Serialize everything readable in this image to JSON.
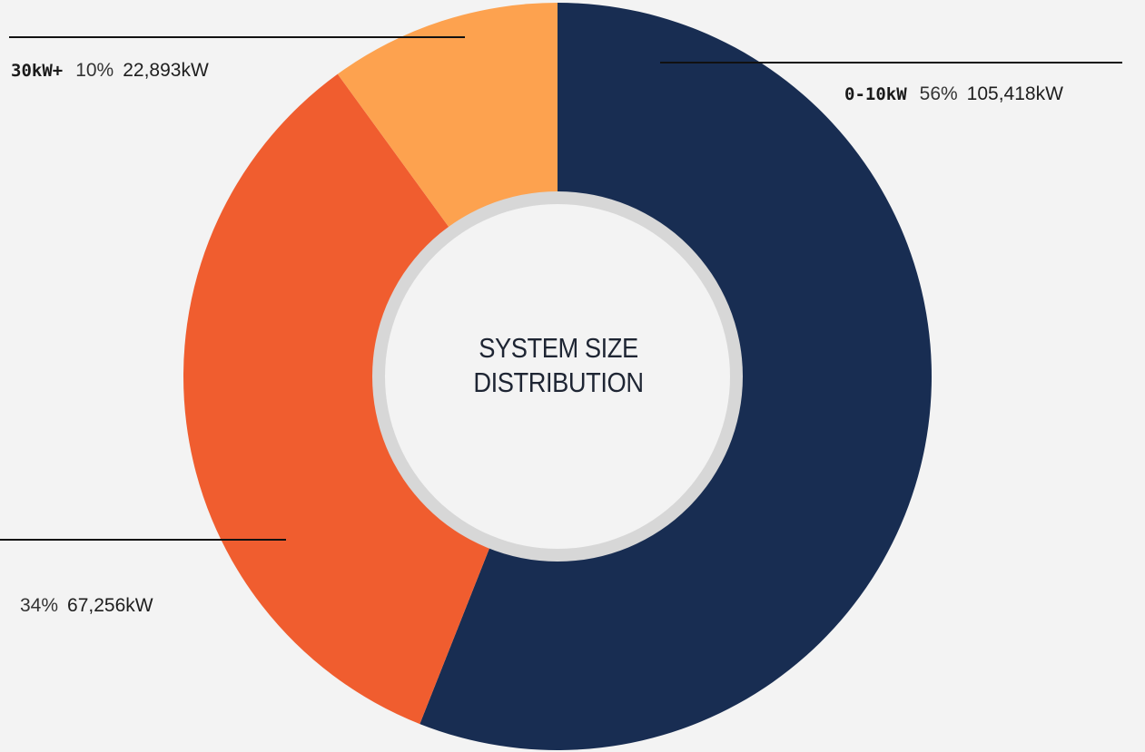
{
  "chart_data": {
    "type": "pie",
    "donut": true,
    "title_lines": [
      "SYSTEM SIZE",
      "DISTRIBUTION"
    ],
    "slices": [
      {
        "category": "0-10kW",
        "percent": 56,
        "percent_label": "56%",
        "value_kw": 105418,
        "value_label": "105,418kW",
        "color": "#182d52"
      },
      {
        "category": "",
        "percent": 34,
        "percent_label": "34%",
        "value_kw": 67256,
        "value_label": "67,256kW",
        "color": "#f05d2f"
      },
      {
        "category": "30kW+",
        "percent": 10,
        "percent_label": "10%",
        "value_kw": 22893,
        "value_label": "22,893kW",
        "color": "#fda24f"
      }
    ],
    "start_angle_deg": 0,
    "direction": "clockwise"
  },
  "colors": {
    "background": "#f3f3f3",
    "center_fill": "#f3f3f3",
    "center_ring": "#d6d6d6"
  }
}
